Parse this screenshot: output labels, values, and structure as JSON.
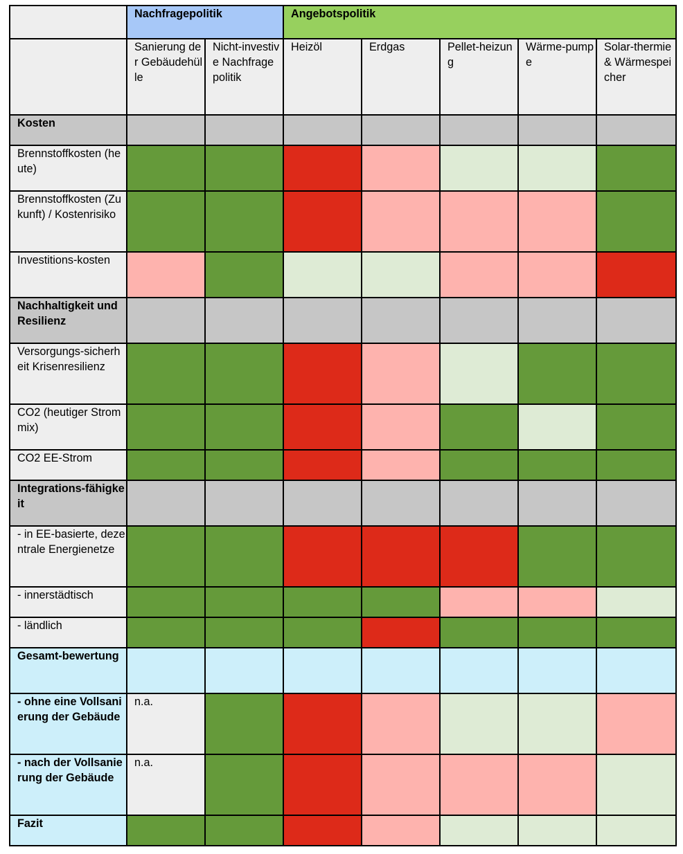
{
  "groups": {
    "demand": "Nachfragepolitik",
    "supply": "Angebotspolitik"
  },
  "columns": [
    "Sanierung der Gebäudehülle",
    "Nicht-investive Nachfrage politik",
    "Heizöl",
    "Erdgas",
    "Pellet-heizung",
    "Wärme-pumpe",
    "Solar-thermie & Wärmespeicher"
  ],
  "legend_colors": {
    "G": "#659a3a",
    "LG": "#deebd5",
    "R": "#dd2a19",
    "LR": "#feb3ae",
    "SG": "#c6c6c6",
    "CY": "#cdeffa",
    "NA": "#eeeeee"
  },
  "rows": [
    {
      "label": "Kosten",
      "type": "section",
      "cells": [
        "SG",
        "SG",
        "SG",
        "SG",
        "SG",
        "SG",
        "SG"
      ],
      "texts": [
        "",
        "",
        "",
        "",
        "",
        "",
        ""
      ]
    },
    {
      "label": "Brennstoffkosten (heute)",
      "type": "normal",
      "cells": [
        "G",
        "G",
        "R",
        "LR",
        "LG",
        "LG",
        "G"
      ],
      "texts": [
        "",
        "",
        "",
        "",
        "",
        "",
        ""
      ]
    },
    {
      "label": "Brennstoffkosten (Zukunft) / Kostenrisiko",
      "type": "normal",
      "cells": [
        "G",
        "G",
        "R",
        "LR",
        "LR",
        "LR",
        "G"
      ],
      "texts": [
        "",
        "",
        "",
        "",
        "",
        "",
        ""
      ]
    },
    {
      "label": "Investitions-kosten",
      "type": "normal",
      "cells": [
        "LR",
        "G",
        "LG",
        "LG",
        "LR",
        "LR",
        "R"
      ],
      "texts": [
        "",
        "",
        "",
        "",
        "",
        "",
        ""
      ]
    },
    {
      "label": "Nachhaltigkeit und Resilienz",
      "type": "section",
      "cells": [
        "SG",
        "SG",
        "SG",
        "SG",
        "SG",
        "SG",
        "SG"
      ],
      "texts": [
        "",
        "",
        "",
        "",
        "",
        "",
        ""
      ]
    },
    {
      "label": "Versorgungs-sicherheit Krisenresilienz",
      "type": "normal",
      "cells": [
        "G",
        "G",
        "R",
        "LR",
        "LG",
        "G",
        "G"
      ],
      "texts": [
        "",
        "",
        "",
        "",
        "",
        "",
        ""
      ]
    },
    {
      "label": "CO2 (heutiger Strommix)",
      "type": "normal",
      "cells": [
        "G",
        "G",
        "R",
        "LR",
        "G",
        "LG",
        "G"
      ],
      "texts": [
        "",
        "",
        "",
        "",
        "",
        "",
        ""
      ]
    },
    {
      "label": "CO2 EE-Strom",
      "type": "normal",
      "cells": [
        "G",
        "G",
        "R",
        "LR",
        "G",
        "G",
        "G"
      ],
      "texts": [
        "",
        "",
        "",
        "",
        "",
        "",
        ""
      ]
    },
    {
      "label": "Integrations-fähigkeit",
      "type": "section",
      "cells": [
        "SG",
        "SG",
        "SG",
        "SG",
        "SG",
        "SG",
        "SG"
      ],
      "texts": [
        "",
        "",
        "",
        "",
        "",
        "",
        ""
      ]
    },
    {
      "label": "- in EE-basierte, dezentrale Energienetze",
      "type": "normal",
      "cells": [
        "G",
        "G",
        "R",
        "R",
        "R",
        "G",
        "G"
      ],
      "texts": [
        "",
        "",
        "",
        "",
        "",
        "",
        ""
      ]
    },
    {
      "label": "- innerstädtisch",
      "type": "normal",
      "cells": [
        "G",
        "G",
        "G",
        "G",
        "LR",
        "LR",
        "LG"
      ],
      "texts": [
        "",
        "",
        "",
        "",
        "",
        "",
        ""
      ]
    },
    {
      "label": "- ländlich",
      "type": "normal",
      "cells": [
        "G",
        "G",
        "G",
        "R",
        "G",
        "G",
        "G"
      ],
      "texts": [
        "",
        "",
        "",
        "",
        "",
        "",
        ""
      ]
    },
    {
      "label": "Gesamt-bewertung",
      "type": "summary",
      "cells": [
        "CY",
        "CY",
        "CY",
        "CY",
        "CY",
        "CY",
        "CY"
      ],
      "texts": [
        "",
        "",
        "",
        "",
        "",
        "",
        ""
      ]
    },
    {
      "label": "- ohne eine Vollsanierung der Gebäude",
      "type": "summary-bold",
      "cells": [
        "NA",
        "G",
        "R",
        "LR",
        "LG",
        "LG",
        "LR"
      ],
      "texts": [
        "n.a.",
        "",
        "",
        "",
        "",
        "",
        ""
      ]
    },
    {
      "label": "- nach der Vollsanierung der Gebäude",
      "type": "summary-bold",
      "cells": [
        "NA",
        "G",
        "R",
        "LR",
        "LR",
        "LR",
        "LG"
      ],
      "texts": [
        "n.a.",
        "",
        "",
        "",
        "",
        "",
        ""
      ]
    },
    {
      "label": "Fazit",
      "type": "summary-bold",
      "cells": [
        "G",
        "G",
        "R",
        "LR",
        "LG",
        "LG",
        "LG"
      ],
      "texts": [
        "",
        "",
        "",
        "",
        "",
        "",
        ""
      ]
    }
  ]
}
